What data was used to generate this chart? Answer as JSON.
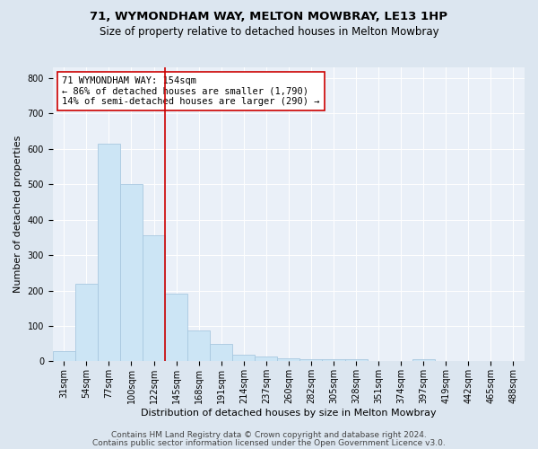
{
  "title": "71, WYMONDHAM WAY, MELTON MOWBRAY, LE13 1HP",
  "subtitle": "Size of property relative to detached houses in Melton Mowbray",
  "xlabel": "Distribution of detached houses by size in Melton Mowbray",
  "ylabel": "Number of detached properties",
  "categories": [
    "31sqm",
    "54sqm",
    "77sqm",
    "100sqm",
    "122sqm",
    "145sqm",
    "168sqm",
    "191sqm",
    "214sqm",
    "237sqm",
    "260sqm",
    "282sqm",
    "305sqm",
    "328sqm",
    "351sqm",
    "374sqm",
    "397sqm",
    "419sqm",
    "442sqm",
    "465sqm",
    "488sqm"
  ],
  "values": [
    30,
    220,
    615,
    500,
    357,
    190,
    88,
    50,
    18,
    13,
    8,
    5,
    7,
    5,
    0,
    0,
    7,
    0,
    0,
    0,
    0
  ],
  "bar_color": "#cce5f5",
  "bar_edge_color": "#a8c8e0",
  "property_line_index": 5,
  "property_line_color": "#cc0000",
  "annotation_text": "71 WYMONDHAM WAY: 154sqm\n← 86% of detached houses are smaller (1,790)\n14% of semi-detached houses are larger (290) →",
  "annotation_box_color": "#ffffff",
  "annotation_box_edge_color": "#cc0000",
  "ylim": [
    0,
    830
  ],
  "yticks": [
    0,
    100,
    200,
    300,
    400,
    500,
    600,
    700,
    800
  ],
  "footer1": "Contains HM Land Registry data © Crown copyright and database right 2024.",
  "footer2": "Contains public sector information licensed under the Open Government Licence v3.0.",
  "background_color": "#dce6f0",
  "plot_background_color": "#eaf0f8",
  "title_fontsize": 9.5,
  "subtitle_fontsize": 8.5,
  "xlabel_fontsize": 8,
  "ylabel_fontsize": 8,
  "tick_fontsize": 7,
  "annotation_fontsize": 7.5,
  "footer_fontsize": 6.5
}
